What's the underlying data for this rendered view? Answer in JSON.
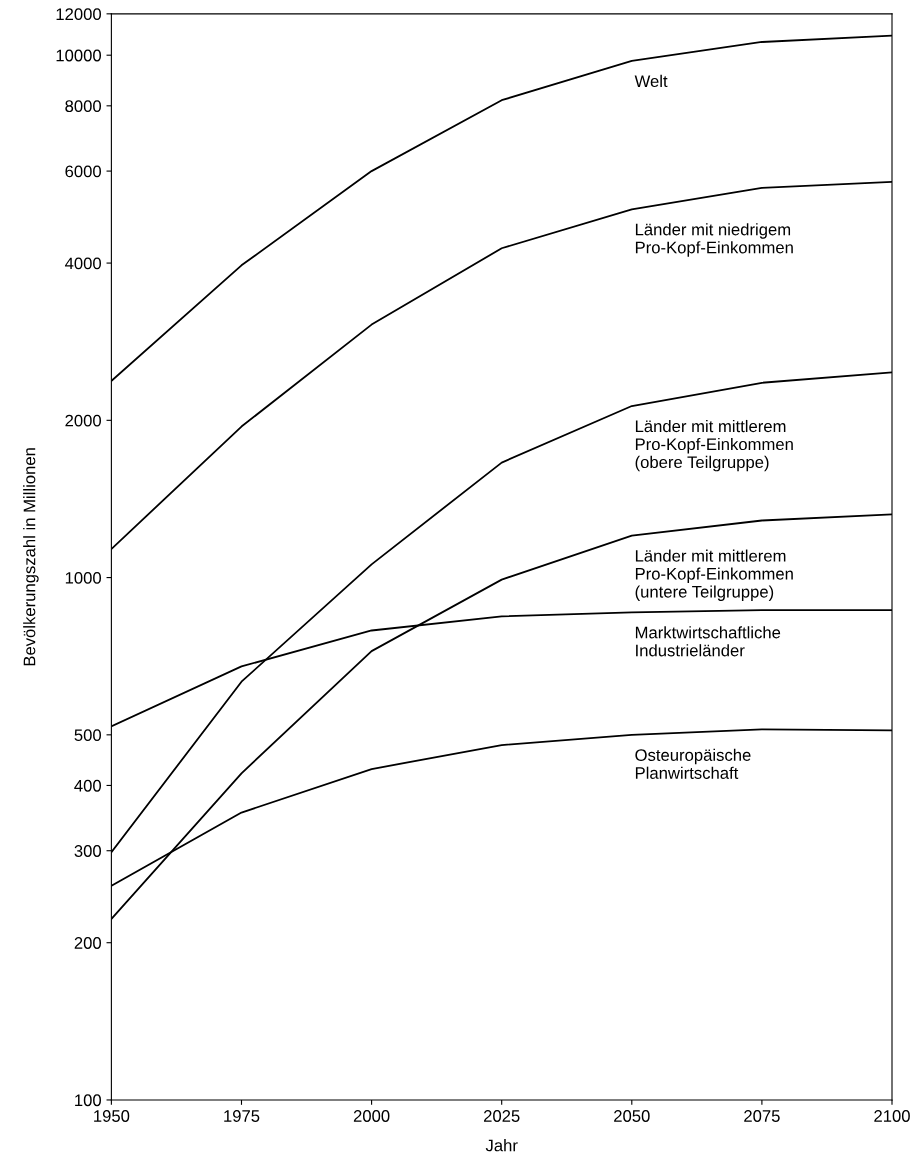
{
  "chart_data": {
    "type": "line",
    "xlabel": "Jahr",
    "ylabel": "Bevölkerungszahl in Millionen",
    "log": "y",
    "x": [
      1950,
      1975,
      2000,
      2025,
      2050,
      2075,
      2100
    ],
    "xlim": [
      1950,
      2100
    ],
    "xticks": [
      1950,
      1975,
      2000,
      2025,
      2050,
      2075,
      2100
    ],
    "ylim": [
      100,
      12000
    ],
    "yticks": [
      100,
      200,
      300,
      400,
      500,
      1000,
      2000,
      4000,
      6000,
      8000,
      10000,
      12000
    ],
    "grid": false,
    "legend": false,
    "marker": "none",
    "line_style": "solid",
    "series": [
      {
        "name": "Welt",
        "color": "#000000",
        "values": [
          2380,
          3960,
          6000,
          8200,
          9750,
          10600,
          10900
        ]
      },
      {
        "name": "Länder mit niedrigem\nPro-Kopf-Einkommen",
        "color": "#000000",
        "values": [
          1134,
          1946,
          3050,
          4270,
          5070,
          5570,
          5720
        ]
      },
      {
        "name": "Länder mit mittlerem\nPro-Kopf-Einkommen\n(obere Teilgruppe)",
        "color": "#000000",
        "values": [
          298,
          632,
          1060,
          1660,
          2130,
          2360,
          2470
        ]
      },
      {
        "name": "Länder mit mittlerem\nPro-Kopf-Einkommen\n(untere Teilgruppe)",
        "color": "#000000",
        "values": [
          222,
          422,
          723,
          991,
          1203,
          1286,
          1321
        ]
      },
      {
        "name": "Marktwirtschaftliche\nIndustrieländer",
        "color": "#000000",
        "values": [
          519,
          676,
          792,
          843,
          858,
          866,
          866
        ]
      },
      {
        "name": "Osteuropäische\nPlanwirtschaft",
        "color": "#000000",
        "values": [
          257,
          355,
          430,
          478,
          500,
          512,
          510
        ]
      }
    ]
  }
}
